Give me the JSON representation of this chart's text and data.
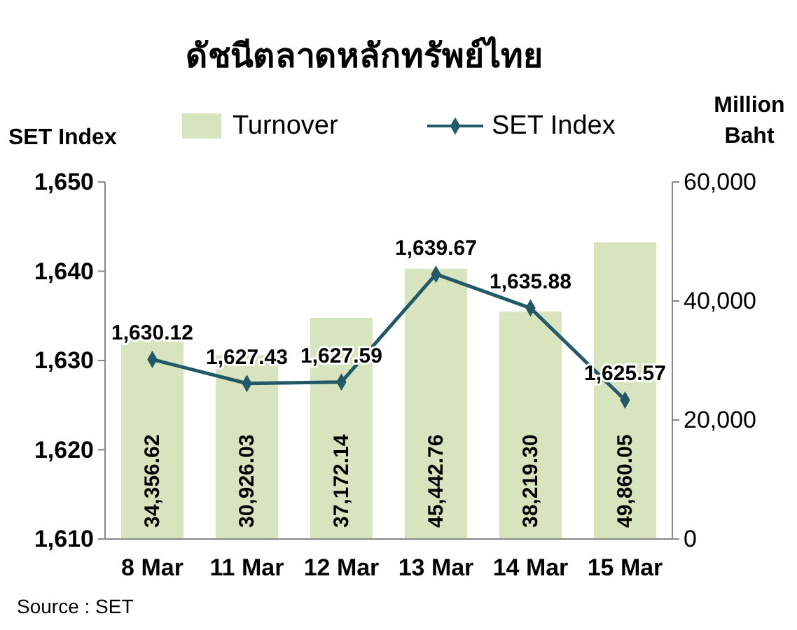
{
  "chart_data": {
    "type": "bar",
    "title": "ดัชนีตลาดหลักทรัพย์ไทย",
    "ylabel": "SET Index",
    "y2label": "Million Baht",
    "categories": [
      "8 Mar",
      "11 Mar",
      "12 Mar",
      "13 Mar",
      "14 Mar",
      "15 Mar"
    ],
    "series": [
      {
        "name": "Turnover",
        "axis": "y2",
        "color": "#d7e4bd",
        "values": [
          34356.62,
          30926.03,
          37172.14,
          45442.76,
          38219.3,
          49860.05
        ],
        "value_labels": [
          "34,356.62",
          "30,926.03",
          "37,172.14",
          "45,442.76",
          "38,219.30",
          "49,860.05"
        ]
      },
      {
        "name": "SET Index",
        "type": "line",
        "color": "#215968",
        "marker": "diamond",
        "values": [
          1630.12,
          1627.43,
          1627.59,
          1639.67,
          1635.88,
          1625.57
        ],
        "value_labels": [
          "1,630.12",
          "1,627.43",
          "1,627.59",
          "1,639.67",
          "1,635.88",
          "1,625.57"
        ]
      }
    ],
    "ylim": [
      1610,
      1650
    ],
    "yticks": [
      {
        "value": 1610,
        "label": "1,610"
      },
      {
        "value": 1620,
        "label": "1,620"
      },
      {
        "value": 1630,
        "label": "1,630"
      },
      {
        "value": 1640,
        "label": "1,640"
      },
      {
        "value": 1650,
        "label": "1,650"
      }
    ],
    "y2lim": [
      0,
      60000
    ],
    "y2ticks": [
      0,
      {
        "value": 20000,
        "label": "20,000"
      },
      {
        "value": 40000,
        "label": "40,000"
      },
      {
        "value": 60000,
        "label": "60,000"
      }
    ],
    "legend": "top",
    "grid": false,
    "annotations": [
      "Source : SET"
    ]
  }
}
